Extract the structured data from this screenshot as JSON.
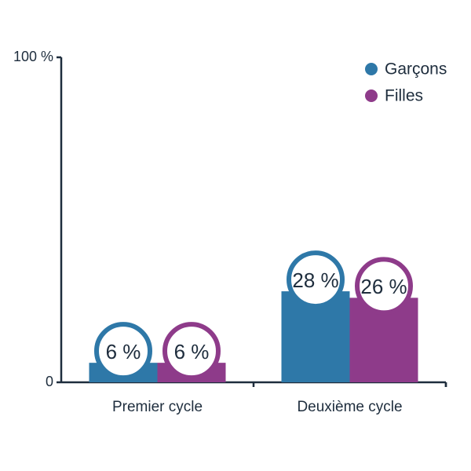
{
  "chart_data": {
    "type": "bar",
    "categories": [
      "Premier cycle",
      "Deuxième cycle"
    ],
    "series": [
      {
        "name": "Garçons",
        "color": "#2e78a8",
        "values": [
          6,
          28
        ],
        "value_labels": [
          "6 %",
          "28 %"
        ]
      },
      {
        "name": "Filles",
        "color": "#8e3b8a",
        "values": [
          6,
          26
        ],
        "value_labels": [
          "6 %",
          "26 %"
        ]
      }
    ],
    "ylim": [
      0,
      100
    ],
    "yticks": [
      0,
      {
        "value": 100,
        "label": "100 %"
      }
    ],
    "legend": "top-right"
  }
}
